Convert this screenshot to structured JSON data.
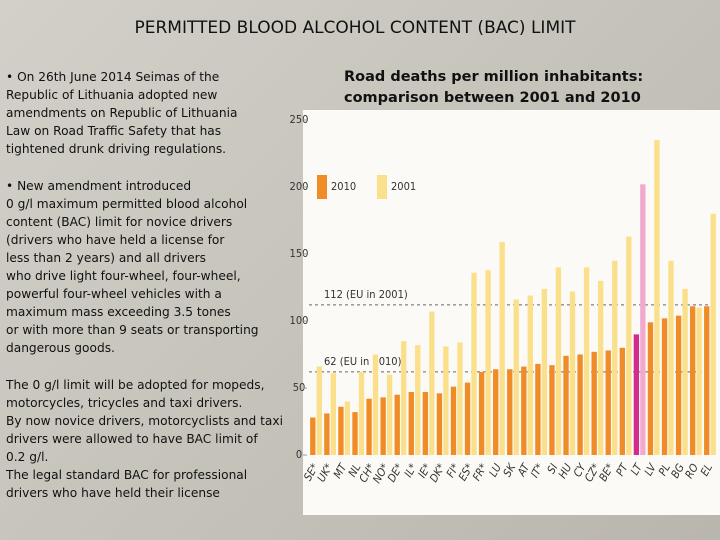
{
  "title": "PERMITTED BLOOD ALCOHOL CONTENT (BAC) LIMIT",
  "paragraphs": [
    [
      "•    On 26th June 2014 Seimas of the",
      "Republic of Lithuania adopted new",
      "amendments on Republic of Lithuania",
      "Law on Road Traffic Safety that has",
      "tightened drunk driving regulations."
    ],
    [
      "•    New amendment introduced",
      "0 g/l maximum permitted blood alcohol",
      "content (BAC) limit for novice drivers",
      "(drivers who have held a license for",
      "less than 2 years) and all drivers",
      "who drive light four-wheel, four-wheel,",
      "powerful four-wheel vehicles with a",
      "maximum mass exceeding 3.5 tones",
      "or with more than 9 seats or transporting",
      "dangerous goods."
    ],
    [
      "The 0 g/l limit will be adopted for mopeds,",
      "motorcycles, tricycles and taxi drivers.",
      "By now novice drivers, motorcyclists and taxi",
      "drivers were allowed to have BAC limit of",
      "0.2 g/l.",
      "The legal standard BAC for professional",
      "drivers who have held their license"
    ]
  ],
  "chart_data": {
    "type": "bar",
    "title": "Road deaths per million inhabitants:",
    "subtitle": "comparison between 2001 and 2010",
    "categories": [
      "SE*",
      "UK*",
      "MT",
      "NL",
      "CH*",
      "NO*",
      "DE*",
      "IL*",
      "IE*",
      "DK*",
      "FI*",
      "ES*",
      "FR*",
      "LU",
      "SK",
      "AT",
      "IT*",
      "SI",
      "HU",
      "CY",
      "CZ*",
      "BE*",
      "PT",
      "LT",
      "LV",
      "PL",
      "BG",
      "RO",
      "EL"
    ],
    "series": [
      {
        "name": "2010",
        "color": "#f08c28",
        "values": [
          28,
          31,
          36,
          32,
          42,
          43,
          45,
          47,
          47,
          46,
          51,
          54,
          62,
          64,
          64,
          66,
          68,
          67,
          74,
          75,
          77,
          78,
          80,
          90,
          99,
          102,
          104,
          111,
          111
        ]
      },
      {
        "name": "2001",
        "color": "#fbe08c",
        "values": [
          66,
          61,
          40,
          62,
          75,
          60,
          85,
          82,
          107,
          81,
          84,
          136,
          138,
          159,
          116,
          119,
          124,
          140,
          122,
          140,
          130,
          145,
          163,
          202,
          235,
          145,
          124,
          110,
          180
        ]
      }
    ],
    "highlight": "LT",
    "highlight_colors": [
      "#d42a8c",
      "#f2a9cf"
    ],
    "ref_lines": [
      {
        "value": 112,
        "label": "112 (EU in 2001)"
      },
      {
        "value": 62,
        "label": "62 (EU in 2010)"
      }
    ],
    "ylim": [
      0,
      250
    ],
    "yticks": [
      0,
      50,
      100,
      150,
      200,
      250
    ],
    "legend": "upper left"
  }
}
